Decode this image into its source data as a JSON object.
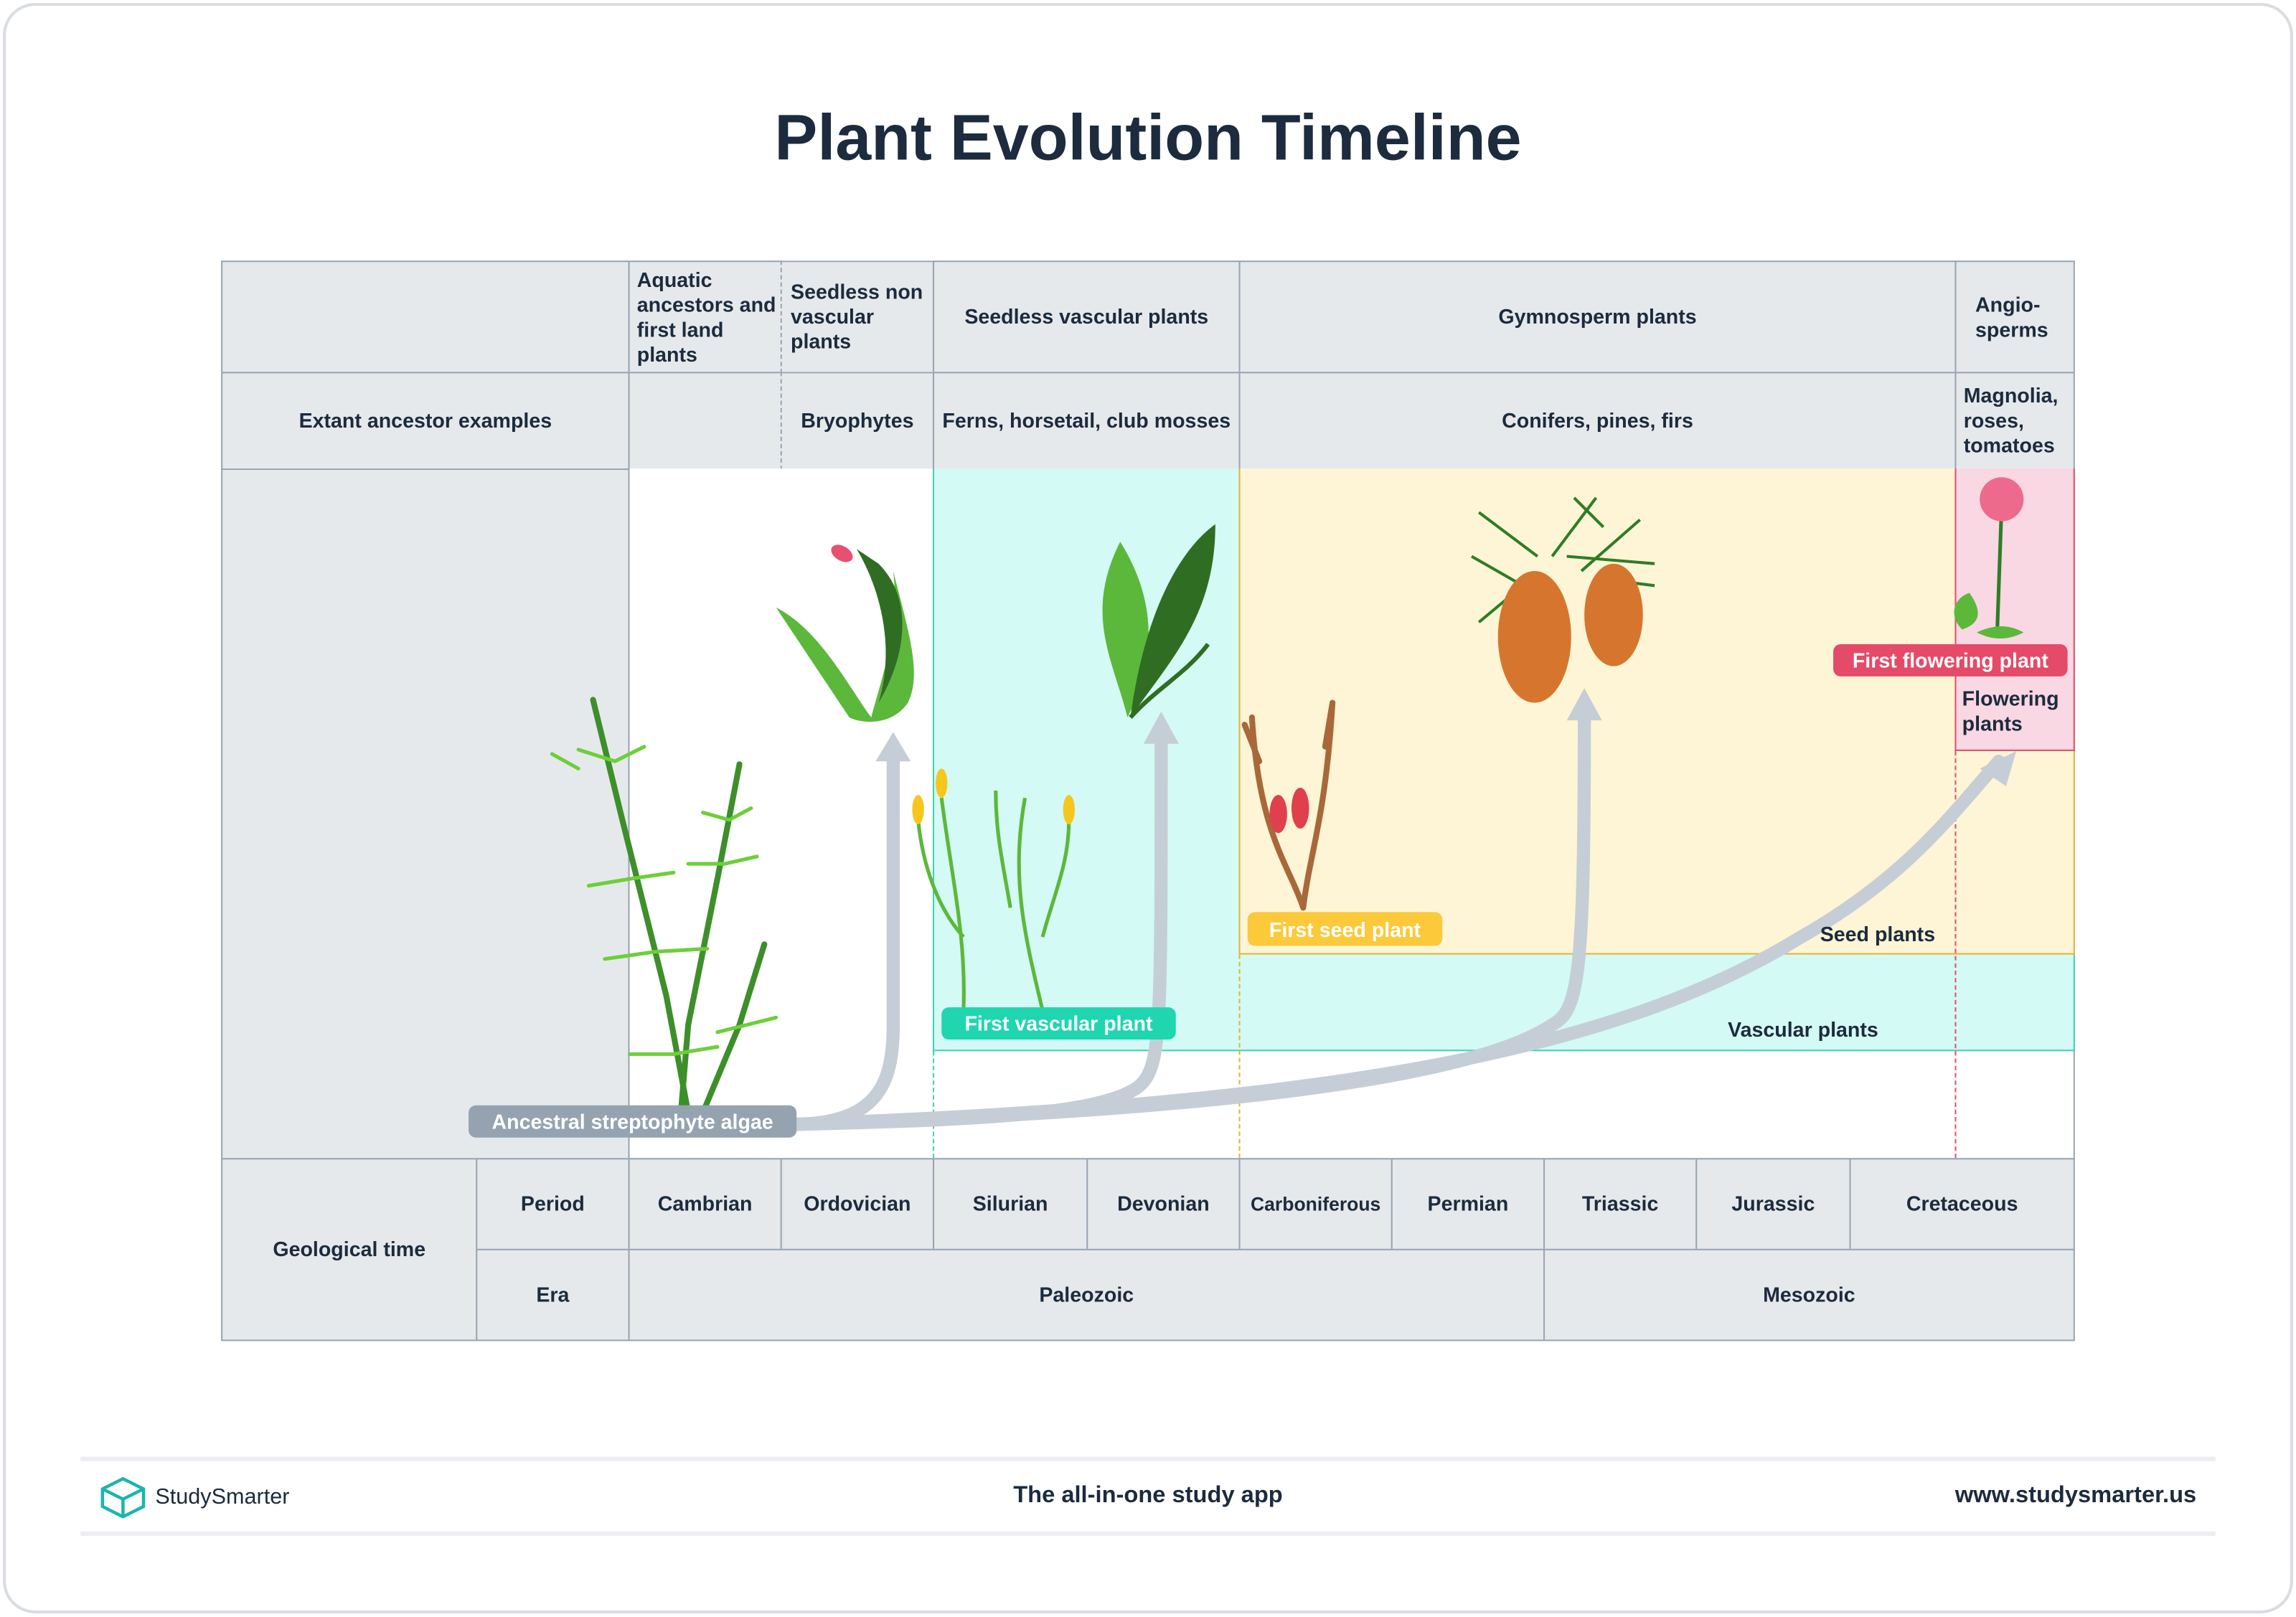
{
  "title": "Plant Evolution Timeline",
  "header_row": {
    "aquatic": "Aquatic ancestors and first land plants",
    "seedless_nonvascular": "Seedless non vascular plants",
    "seedless_vascular": "Seedless vascular plants",
    "gymnosperm": "Gymnosperm plants",
    "angiosperms": "Angio-sperms"
  },
  "examples_row": {
    "label": "Extant ancestor examples",
    "bryophytes": "Bryophytes",
    "ferns": "Ferns, horsetail, club mosses",
    "conifers": "Conifers, pines, firs",
    "angiosperm_examples": "Magnolia, roses, tomatoes"
  },
  "milestones": {
    "algae": "Ancestral streptophyte algae",
    "vascular": "First vascular plant",
    "seed": "First seed plant",
    "flowering": "First flowering plant"
  },
  "groups": {
    "seed_plants": "Seed plants",
    "vascular_plants": "Vascular plants",
    "flowering_plants": "Flowering plants"
  },
  "geo": {
    "label": "Geological time",
    "period_label": "Period",
    "era_label": "Era",
    "periods": [
      "Cambrian",
      "Ordovician",
      "Silurian",
      "Devonian",
      "Carboniferous",
      "Permian",
      "Triassic",
      "Jurassic",
      "Cretaceous"
    ],
    "eras": [
      "Paleozoic",
      "Mesozoic"
    ]
  },
  "colors": {
    "vascular_fill": "#d3faf4",
    "vascular_border": "#3fd3b5",
    "seed_fill": "#fdf5d5",
    "seed_border": "#e2b43a",
    "flower_fill": "#f9d7e3",
    "flower_border": "#e0506c",
    "arrow": "#c5ced6",
    "algae_pill": "#95a3b1",
    "vascular_pill": "#1fd6b0",
    "seed_pill": "#fbc93a",
    "flowering_pill": "#e54a68"
  },
  "footer": {
    "brand": "StudySmarter",
    "tagline": "The all-in-one study app",
    "url": "www.studysmarter.us"
  }
}
